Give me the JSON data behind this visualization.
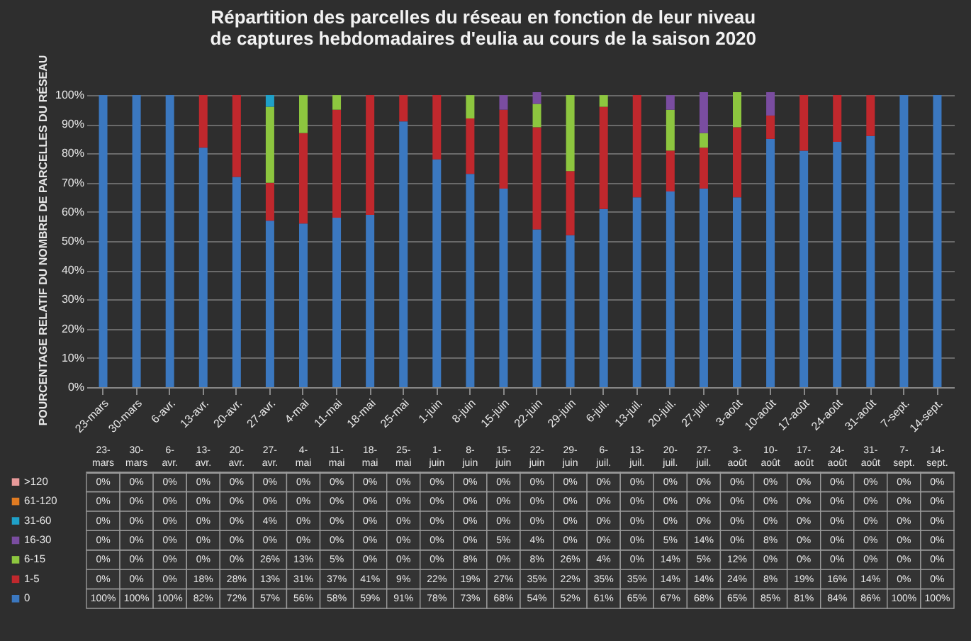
{
  "chart_data": {
    "type": "bar",
    "stacked": true,
    "title": "Répartition des parcelles du réseau en fonction de leur niveau de captures hebdomadaires d'eulia au cours de la saison 2020",
    "ylabel": "POURCENTAGE RELATIF DU NOMBRE DE PARCELLES DU RÉSEAU",
    "categories": [
      "23-mars",
      "30-mars",
      "6-avr.",
      "13-avr.",
      "20-avr.",
      "27-avr.",
      "4-mai",
      "11-mai",
      "18-mai",
      "25-mai",
      "1-juin",
      "8-juin",
      "15-juin",
      "22-juin",
      "29-juin",
      "6-juil.",
      "13-juil.",
      "20-juil.",
      "27-juil.",
      "3-août",
      "10-août",
      "17-août",
      "24-août",
      "31-août",
      "7-sept.",
      "14-sept."
    ],
    "ylim": [
      0,
      101
    ],
    "yticks": [
      {
        "value": 0,
        "label": "0%"
      },
      {
        "value": 10,
        "label": "10%"
      },
      {
        "value": 20,
        "label": "20%"
      },
      {
        "value": 30,
        "label": "30%"
      },
      {
        "value": 40,
        "label": "40%"
      },
      {
        "value": 50,
        "label": "50%"
      },
      {
        "value": 60,
        "label": "60%"
      },
      {
        "value": 70,
        "label": "70%"
      },
      {
        "value": 80,
        "label": "80%"
      },
      {
        "value": 90,
        "label": "90%"
      },
      {
        "value": 100,
        "label": "100%"
      }
    ],
    "grid": "y",
    "legend": "bottom",
    "series": [
      {
        "name": "0",
        "color": "#3b78c0",
        "values": [
          100,
          100,
          100,
          82,
          72,
          57,
          56,
          58,
          59,
          91,
          78,
          73,
          68,
          54,
          52,
          61,
          65,
          67,
          68,
          65,
          85,
          81,
          84,
          86,
          100,
          100
        ],
        "value_labels": [
          "100%",
          "100%",
          "100%",
          "82%",
          "72%",
          "57%",
          "56%",
          "58%",
          "59%",
          "91%",
          "78%",
          "73%",
          "68%",
          "54%",
          "52%",
          "61%",
          "65%",
          "67%",
          "68%",
          "65%",
          "85%",
          "81%",
          "84%",
          "86%",
          "100%",
          "100%"
        ]
      },
      {
        "name": "1-5",
        "color": "#c0282d",
        "values": [
          0,
          0,
          0,
          18,
          28,
          13,
          31,
          37,
          41,
          9,
          22,
          19,
          27,
          35,
          22,
          35,
          35,
          14,
          14,
          24,
          8,
          19,
          16,
          14,
          0,
          0
        ],
        "value_labels": [
          "0%",
          "0%",
          "0%",
          "18%",
          "28%",
          "13%",
          "31%",
          "37%",
          "41%",
          "9%",
          "22%",
          "19%",
          "27%",
          "35%",
          "22%",
          "35%",
          "35%",
          "14%",
          "14%",
          "24%",
          "8%",
          "19%",
          "16%",
          "14%",
          "0%",
          "0%"
        ]
      },
      {
        "name": "6-15",
        "color": "#8dc63f",
        "values": [
          0,
          0,
          0,
          0,
          0,
          26,
          13,
          5,
          0,
          0,
          0,
          8,
          0,
          8,
          26,
          4,
          0,
          14,
          5,
          12,
          0,
          0,
          0,
          0,
          0,
          0
        ],
        "value_labels": [
          "0%",
          "0%",
          "0%",
          "0%",
          "0%",
          "26%",
          "13%",
          "5%",
          "0%",
          "0%",
          "0%",
          "8%",
          "0%",
          "8%",
          "26%",
          "4%",
          "0%",
          "14%",
          "5%",
          "12%",
          "0%",
          "0%",
          "0%",
          "0%",
          "0%",
          "0%"
        ]
      },
      {
        "name": "16-30",
        "color": "#7a4da0",
        "values": [
          0,
          0,
          0,
          0,
          0,
          0,
          0,
          0,
          0,
          0,
          0,
          0,
          5,
          4,
          0,
          0,
          0,
          5,
          14,
          0,
          8,
          0,
          0,
          0,
          0,
          0
        ],
        "value_labels": [
          "0%",
          "0%",
          "0%",
          "0%",
          "0%",
          "0%",
          "0%",
          "0%",
          "0%",
          "0%",
          "0%",
          "0%",
          "5%",
          "4%",
          "0%",
          "0%",
          "0%",
          "5%",
          "14%",
          "0%",
          "8%",
          "0%",
          "0%",
          "0%",
          "0%",
          "0%"
        ]
      },
      {
        "name": "31-60",
        "color": "#1fa0c8",
        "values": [
          0,
          0,
          0,
          0,
          0,
          4,
          0,
          0,
          0,
          0,
          0,
          0,
          0,
          0,
          0,
          0,
          0,
          0,
          0,
          0,
          0,
          0,
          0,
          0,
          0,
          0
        ],
        "value_labels": [
          "0%",
          "0%",
          "0%",
          "0%",
          "0%",
          "4%",
          "0%",
          "0%",
          "0%",
          "0%",
          "0%",
          "0%",
          "0%",
          "0%",
          "0%",
          "0%",
          "0%",
          "0%",
          "0%",
          "0%",
          "0%",
          "0%",
          "0%",
          "0%",
          "0%",
          "0%"
        ]
      },
      {
        "name": "61-120",
        "color": "#e07b22",
        "values": [
          0,
          0,
          0,
          0,
          0,
          0,
          0,
          0,
          0,
          0,
          0,
          0,
          0,
          0,
          0,
          0,
          0,
          0,
          0,
          0,
          0,
          0,
          0,
          0,
          0,
          0
        ],
        "value_labels": [
          "0%",
          "0%",
          "0%",
          "0%",
          "0%",
          "0%",
          "0%",
          "0%",
          "0%",
          "0%",
          "0%",
          "0%",
          "0%",
          "0%",
          "0%",
          "0%",
          "0%",
          "0%",
          "0%",
          "0%",
          "0%",
          "0%",
          "0%",
          "0%",
          "0%",
          "0%"
        ]
      },
      {
        "name": ">120",
        "color": "#e89a9a",
        "values": [
          0,
          0,
          0,
          0,
          0,
          0,
          0,
          0,
          0,
          0,
          0,
          0,
          0,
          0,
          0,
          0,
          0,
          0,
          0,
          0,
          0,
          0,
          0,
          0,
          0,
          0
        ],
        "value_labels": [
          "0%",
          "0%",
          "0%",
          "0%",
          "0%",
          "0%",
          "0%",
          "0%",
          "0%",
          "0%",
          "0%",
          "0%",
          "0%",
          "0%",
          "0%",
          "0%",
          "0%",
          "0%",
          "0%",
          "0%",
          "0%",
          "0%",
          "0%",
          "0%",
          "0%",
          "0%"
        ]
      }
    ]
  }
}
